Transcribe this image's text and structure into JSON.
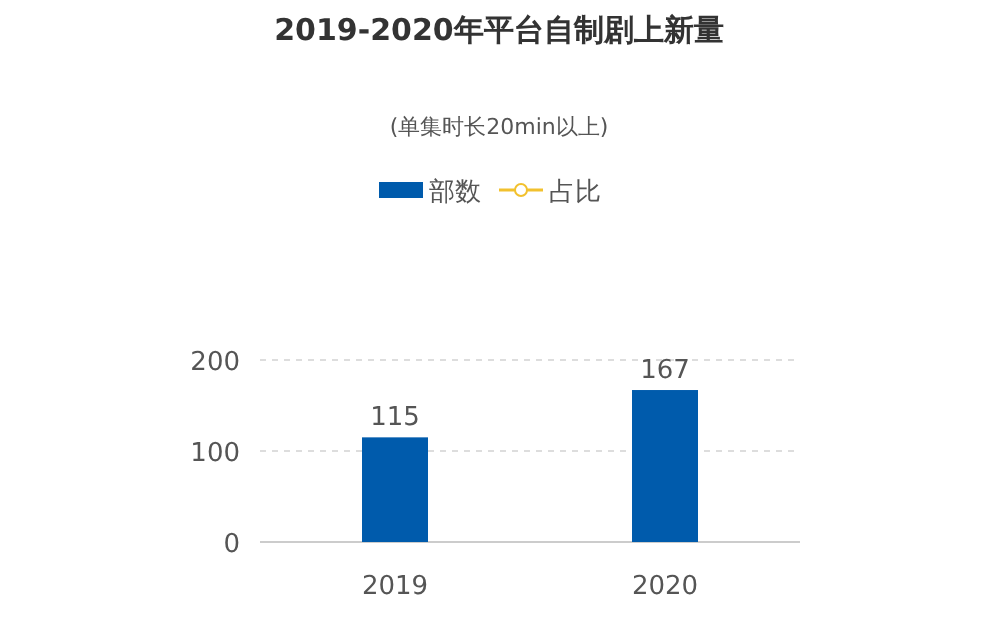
{
  "chart_data": {
    "type": "bar",
    "title": "2019-2020年平台自制剧上新量",
    "subtitle": "(单集时长20min以上)",
    "categories": [
      "2019",
      "2020"
    ],
    "series": [
      {
        "name": "部数",
        "color": "#005bac",
        "values": [
          115,
          167
        ]
      },
      {
        "name": "占比",
        "type": "line",
        "color": "#f2c12e",
        "values": [
          null,
          null
        ]
      }
    ],
    "ylim": [
      0,
      200
    ],
    "yticks": [
      0,
      100,
      200
    ],
    "grid": "y",
    "legend": "top",
    "marker": "circle",
    "data_labels": true
  }
}
